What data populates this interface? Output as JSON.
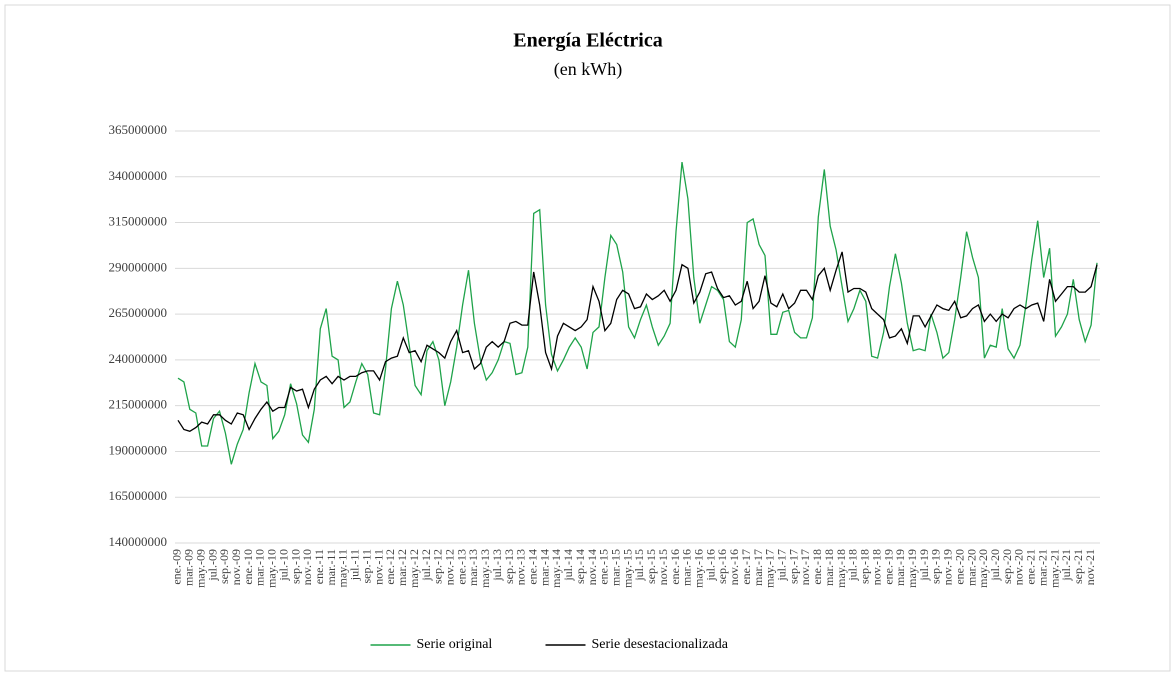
{
  "chart_data": {
    "type": "line",
    "title": "Energía Eléctrica",
    "subtitle": "(en kWh)",
    "categories": [
      "ene.-09",
      null,
      "mar.-09",
      null,
      "may.-09",
      null,
      "jul.-09",
      null,
      "sep.-09",
      null,
      "nov.-09",
      null,
      "ene.-10",
      null,
      "mar.-10",
      null,
      "may.-10",
      null,
      "jul.-10",
      null,
      "sep.-10",
      null,
      "nov.-10",
      null,
      "ene.-11",
      null,
      "mar.-11",
      null,
      "may.-11",
      null,
      "jul.-11",
      null,
      "sep.-11",
      null,
      "nov.-11",
      null,
      "ene.-12",
      null,
      "mar.-12",
      null,
      "may.-12",
      null,
      "jul.-12",
      null,
      "sep.-12",
      null,
      "nov.-12",
      null,
      "ene.-13",
      null,
      "mar.-13",
      null,
      "may.-13",
      null,
      "jul.-13",
      null,
      "sep.-13",
      null,
      "nov.-13",
      null,
      "ene.-14",
      null,
      "mar.-14",
      null,
      "may.-14",
      null,
      "jul.-14",
      null,
      "sep.-14",
      null,
      "nov.-14",
      null,
      "ene.-15",
      null,
      "mar.-15",
      null,
      "may.-15",
      null,
      "jul.-15",
      null,
      "sep.-15",
      null,
      "nov.-15",
      null,
      "ene.-16",
      null,
      "mar.-16",
      null,
      "may.-16",
      null,
      "jul.-16",
      null,
      "sep.-16",
      null,
      "nov.-16",
      null,
      "ene.-17",
      null,
      "mar.-17",
      null,
      "may.-17",
      null,
      "jul.-17",
      null,
      "sep.-17",
      null,
      "nov.-17",
      null,
      "ene.-18",
      null,
      "mar.-18",
      null,
      "may.-18",
      null,
      "jul.-18",
      null,
      "sep.-18",
      null,
      "nov.-18",
      null,
      "ene.-19",
      null,
      "mar.-19",
      null,
      "may.-19",
      null,
      "jul.-19",
      null,
      "sep.-19",
      null,
      "nov.-19",
      null,
      "ene.-20",
      null,
      "mar.-20",
      null,
      "may.-20",
      null,
      "jul.-20",
      null,
      "sep.-20",
      null,
      "nov.-20",
      null,
      "ene.-21",
      null,
      "mar.-21",
      null,
      "may.-21",
      null,
      "jul.-21",
      null,
      "sep.-21",
      null,
      "nov.-21",
      null
    ],
    "series": [
      {
        "name": "Serie original",
        "color": "#1fa34a",
        "values": [
          230000000,
          228000000,
          213000000,
          211000000,
          193000000,
          193000000,
          208000000,
          212000000,
          200000000,
          183000000,
          194000000,
          202000000,
          222000000,
          238000000,
          228000000,
          226000000,
          197000000,
          201000000,
          210000000,
          227000000,
          216000000,
          199000000,
          195000000,
          213000000,
          257000000,
          268000000,
          242000000,
          240000000,
          214000000,
          217000000,
          228000000,
          238000000,
          232000000,
          211000000,
          210000000,
          235000000,
          268000000,
          283000000,
          270000000,
          248000000,
          226000000,
          221000000,
          245000000,
          250000000,
          240000000,
          215000000,
          228000000,
          247000000,
          270000000,
          289000000,
          260000000,
          240000000,
          229000000,
          233000000,
          240000000,
          250000000,
          249000000,
          232000000,
          233000000,
          247000000,
          320000000,
          322000000,
          270000000,
          243000000,
          234000000,
          240000000,
          247000000,
          252000000,
          247000000,
          235000000,
          255000000,
          258000000,
          285000000,
          308000000,
          303000000,
          288000000,
          258000000,
          252000000,
          262000000,
          270000000,
          258000000,
          248000000,
          253000000,
          260000000,
          310000000,
          348000000,
          328000000,
          285000000,
          260000000,
          270000000,
          280000000,
          278000000,
          273000000,
          250000000,
          247000000,
          262000000,
          315000000,
          317000000,
          303000000,
          297000000,
          254000000,
          254000000,
          266000000,
          267000000,
          255000000,
          252000000,
          252000000,
          263000000,
          318000000,
          344000000,
          313000000,
          300000000,
          280000000,
          261000000,
          268000000,
          278000000,
          272000000,
          242000000,
          241000000,
          255000000,
          280000000,
          298000000,
          282000000,
          260000000,
          245000000,
          246000000,
          245000000,
          265000000,
          255000000,
          241000000,
          244000000,
          262000000,
          285000000,
          310000000,
          296000000,
          285000000,
          241000000,
          248000000,
          247000000,
          268000000,
          246000000,
          241000000,
          248000000,
          270000000,
          295000000,
          316000000,
          285000000,
          301000000,
          253000000,
          258000000,
          265000000,
          284000000,
          262000000,
          250000000,
          259000000,
          293000000
        ]
      },
      {
        "name": "Serie desestacionalizada",
        "color": "#000000",
        "values": [
          207000000,
          202000000,
          201000000,
          203000000,
          206000000,
          205000000,
          210000000,
          210000000,
          207000000,
          205000000,
          211000000,
          210000000,
          202000000,
          208000000,
          213000000,
          217000000,
          212000000,
          214000000,
          214000000,
          225000000,
          223000000,
          224000000,
          214000000,
          224000000,
          229000000,
          231000000,
          227000000,
          231000000,
          229000000,
          231000000,
          231000000,
          233000000,
          234000000,
          234000000,
          229000000,
          239000000,
          241000000,
          242000000,
          252000000,
          244000000,
          245000000,
          239000000,
          248000000,
          246000000,
          244000000,
          241000000,
          250000000,
          256000000,
          244000000,
          245000000,
          235000000,
          238000000,
          247000000,
          250000000,
          247000000,
          250000000,
          260000000,
          261000000,
          259000000,
          259000000,
          288000000,
          270000000,
          244000000,
          235000000,
          253000000,
          260000000,
          258000000,
          256000000,
          258000000,
          262000000,
          280000000,
          272000000,
          256000000,
          260000000,
          273000000,
          278000000,
          276000000,
          268000000,
          269000000,
          276000000,
          273000000,
          275000000,
          278000000,
          272000000,
          278000000,
          292000000,
          290000000,
          271000000,
          277000000,
          287000000,
          288000000,
          279000000,
          274000000,
          275000000,
          270000000,
          272000000,
          283000000,
          268000000,
          272000000,
          286000000,
          271000000,
          269000000,
          276000000,
          268000000,
          271000000,
          278000000,
          278000000,
          273000000,
          286000000,
          290000000,
          278000000,
          289000000,
          299000000,
          277000000,
          279000000,
          279000000,
          277000000,
          268000000,
          265000000,
          262000000,
          252000000,
          253000000,
          257000000,
          249000000,
          264000000,
          264000000,
          258000000,
          264000000,
          270000000,
          268000000,
          267000000,
          272000000,
          263000000,
          264000000,
          268000000,
          270000000,
          261000000,
          265000000,
          261000000,
          265000000,
          263000000,
          268000000,
          270000000,
          268000000,
          270000000,
          271000000,
          261000000,
          284000000,
          272000000,
          276000000,
          280000000,
          280000000,
          277000000,
          277000000,
          280000000,
          292000000
        ]
      }
    ],
    "ylim": [
      140000000,
      365000000
    ],
    "yticks": [
      140000000,
      165000000,
      190000000,
      215000000,
      240000000,
      265000000,
      290000000,
      315000000,
      340000000,
      365000000
    ],
    "grid": true,
    "legend": "bottom"
  }
}
